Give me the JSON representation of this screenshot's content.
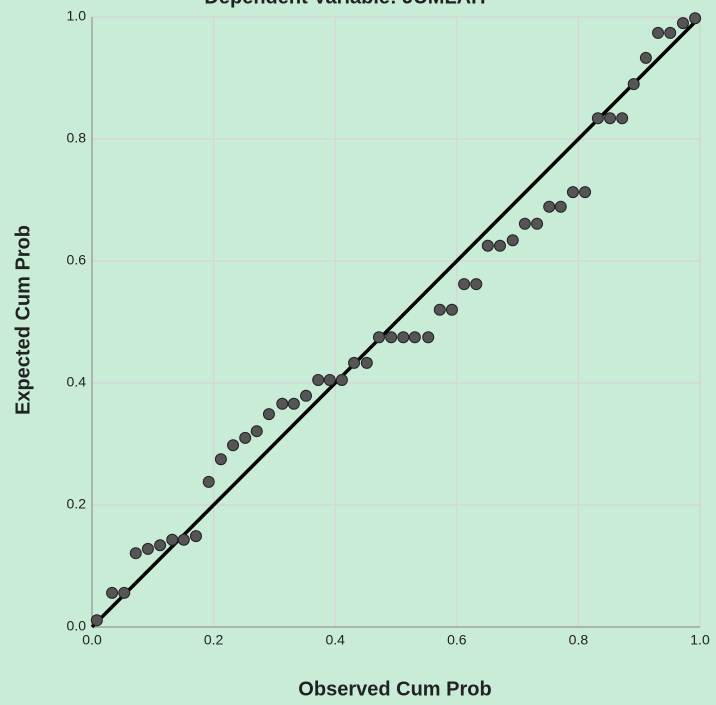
{
  "chart_data": {
    "type": "scatter",
    "title": "Dependent Variable: JUMLAH",
    "xlabel": "Observed Cum Prob",
    "ylabel": "Expected Cum Prob",
    "color": "#555555",
    "grid": true,
    "xlim": [
      0,
      1
    ],
    "ylim": [
      0,
      1
    ],
    "xticks": [
      {
        "value": 0,
        "label": "0.0"
      },
      0.2,
      0.4,
      0.6,
      0.8,
      {
        "value": 1,
        "label": "1.0"
      }
    ],
    "yticks": [
      {
        "value": 0,
        "label": "0.0"
      },
      0.2,
      0.4,
      0.6,
      0.8,
      {
        "value": 1,
        "label": "1.0"
      }
    ],
    "x": [
      0.008,
      0.033,
      0.053,
      0.072,
      0.092,
      0.112,
      0.132,
      0.151,
      0.171,
      0.192,
      0.212,
      0.232,
      0.252,
      0.271,
      0.291,
      0.313,
      0.332,
      0.352,
      0.372,
      0.391,
      0.411,
      0.431,
      0.452,
      0.472,
      0.492,
      0.512,
      0.531,
      0.553,
      0.572,
      0.592,
      0.612,
      0.632,
      0.651,
      0.671,
      0.692,
      0.712,
      0.732,
      0.752,
      0.771,
      0.791,
      0.811,
      0.832,
      0.852,
      0.872,
      0.891,
      0.911,
      0.931,
      0.951,
      0.972,
      0.992
    ],
    "values": [
      0.011,
      0.056,
      0.056,
      0.121,
      0.128,
      0.134,
      0.143,
      0.143,
      0.149,
      0.238,
      0.275,
      0.298,
      0.31,
      0.321,
      0.349,
      0.366,
      0.366,
      0.379,
      0.405,
      0.405,
      0.405,
      0.433,
      0.433,
      0.475,
      0.475,
      0.475,
      0.475,
      0.475,
      0.52,
      0.52,
      0.562,
      0.562,
      0.625,
      0.625,
      0.634,
      0.661,
      0.661,
      0.689,
      0.689,
      0.713,
      0.713,
      0.834,
      0.834,
      0.834,
      0.89,
      0.933,
      0.974,
      0.974,
      0.99,
      0.998
    ]
  }
}
